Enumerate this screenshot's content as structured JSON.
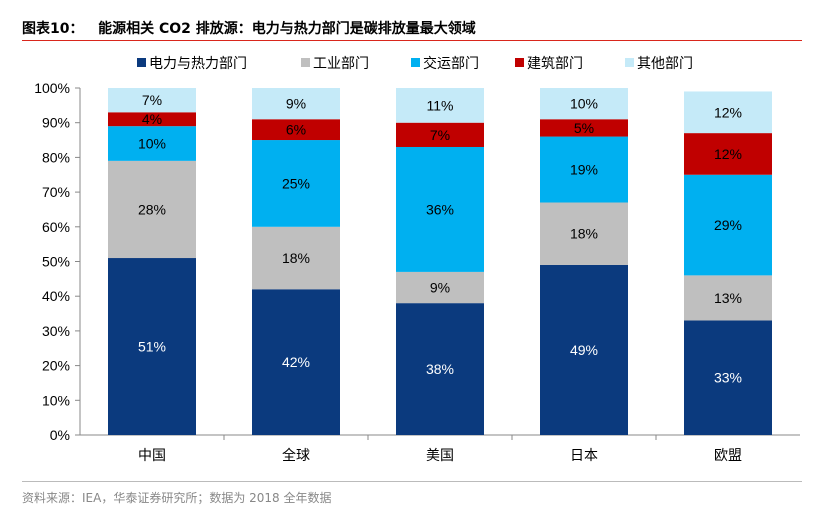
{
  "title": "图表10：   能源相关 CO2 排放源：电力与热力部门是碳排放量最大领域",
  "source": "资料来源：IEA，华泰证券研究所；数据为 2018 全年数据",
  "chart_data": {
    "type": "bar",
    "stacked": true,
    "categories": [
      "中国",
      "全球",
      "美国",
      "日本",
      "欧盟"
    ],
    "ylim": [
      0,
      100
    ],
    "yticks": [
      "0%",
      "10%",
      "20%",
      "30%",
      "40%",
      "50%",
      "60%",
      "70%",
      "80%",
      "90%",
      "100%"
    ],
    "legend_position": "top",
    "grid": false,
    "series": [
      {
        "name": "电力与热力部门",
        "color": "#0B3A7E",
        "label_color": "#ffffff",
        "values": [
          51,
          42,
          38,
          49,
          33
        ]
      },
      {
        "name": "工业部门",
        "color": "#BFBFBF",
        "label_color": "#000000",
        "values": [
          28,
          18,
          9,
          18,
          13
        ]
      },
      {
        "name": "交运部门",
        "color": "#00B0F0",
        "label_color": "#000000",
        "values": [
          10,
          25,
          36,
          19,
          29
        ]
      },
      {
        "name": "建筑部门",
        "color": "#C00000",
        "label_color": "#000000",
        "values": [
          4,
          6,
          7,
          5,
          12
        ]
      },
      {
        "name": "其他部门",
        "color": "#C5EAF8",
        "label_color": "#000000",
        "values": [
          7,
          9,
          11,
          10,
          12
        ]
      }
    ]
  }
}
